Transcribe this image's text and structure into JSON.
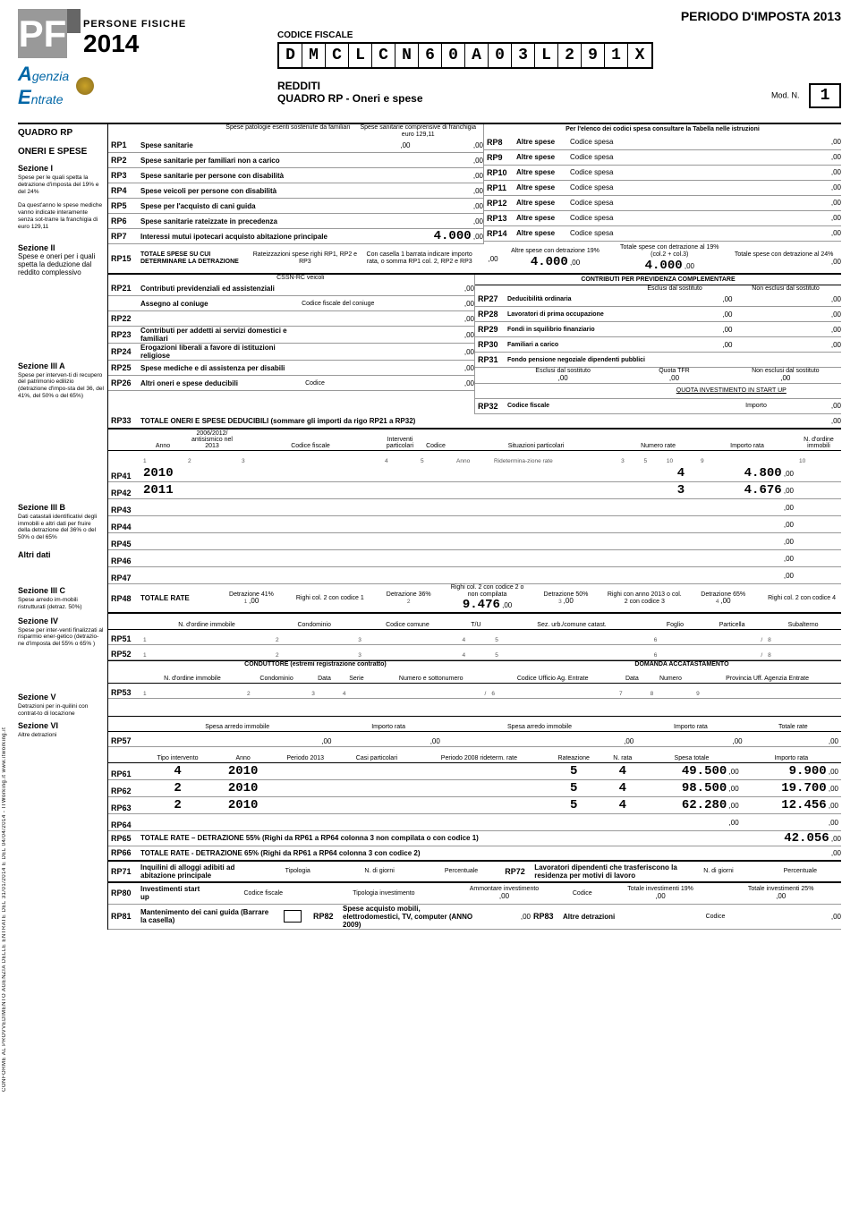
{
  "periodo": "PERIODO D'IMPOSTA 2013",
  "codice_fiscale_label": "CODICE FISCALE",
  "codice_fiscale": [
    "D",
    "M",
    "C",
    "L",
    "C",
    "N",
    "6",
    "0",
    "A",
    "0",
    "3",
    "L",
    "2",
    "9",
    "1",
    "X"
  ],
  "redditi": "REDDITI",
  "quadro_title": "QUADRO RP - Oneri e spese",
  "mod_n_label": "Mod. N.",
  "mod_n": "1",
  "logo": {
    "persone_fisiche": "PERSONE FISICHE",
    "anno": "2014",
    "agenzia": "genzia",
    "entrate": "ntrate"
  },
  "side": {
    "quadro": "QUADRO RP",
    "oneri": "ONERI E SPESE",
    "sez1": "Sezione I",
    "sez1_note1": "Spese per le quali spetta la detrazione d'imposta del 19% e del 24%",
    "sez1_note2": "Da quest'anno le spese mediche vanno indicate interamente senza sot-trarre la franchigia di euro 129,11",
    "sez2": "Sezione II",
    "sez2_sub": "Spese e oneri per i quali spetta la deduzione dal reddito complessivo",
    "sez3a": "Sezione III A",
    "sez3a_sub": "Spese per interven-ti di recupero del patrimonio edilizio (detrazione d'impo-sta del 36, del 41%, del 50% o del 65%)",
    "sez3b": "Sezione III B",
    "sez3b_sub": "Dati catastali identificativi degli immobili e altri dati per fruire della detrazione del 36% o del 50% o del 65%",
    "altri_dati": "Altri dati",
    "sez3c": "Sezione III C",
    "sez3c_sub": "Spese arredo im-mobili ristrutturati (detraz. 50%)",
    "sez4": "Sezione IV",
    "sez4_sub": "Spese per inter-venti finalizzati al risparmio ener-getico (detrazio-ne d'imposta del 55% o 65% )",
    "sez5": "Sezione V",
    "sez5_sub": "Detrazioni per in-quilini con contrat-to di locazione",
    "sez6": "Sezione VI",
    "sez6_sub": "Altre detrazioni"
  },
  "hdrs": {
    "rp1_h1": "Spese patologie esenti sostenute da familiari",
    "rp1_h2": "Spese sanitarie comprensive di franchigia euro 129,11",
    "rp_right": "Per l'elenco dei codici spesa consultare la Tabella nelle istruzioni",
    "codice_spesa": "Codice spesa",
    "altre_spese": "Altre spese",
    "rp15_r": "Rateizzazioni spese righi RP1, RP2 e RP3",
    "rp15_c": "Con casella 1 barrata indicare importo rata, o somma RP1 col. 2, RP2 e RP3",
    "rp15_3": "Altre spese con detrazione 19%",
    "rp15_4": "Totale spese con detrazione al 19% (col.2 + col.3)",
    "rp15_5": "Totale spese con detrazione al 24%",
    "cssn": "CSSN-RC veicoli",
    "contrib_prev": "CONTRIBUTI PER PREVIDENZA COMPLEMENTARE",
    "escluso": "Esclusi dal sostituto",
    "nonescl": "Non esclusi dal sostituto",
    "cf_coniuge": "Codice fiscale del coniuge",
    "quota_tfr": "Quota TFR",
    "quota_startup": "QUOTA INVESTIMENTO IN START UP",
    "importo": "Importo",
    "anno": "Anno",
    "antis": "2006/2012/ antisismico nel 2013",
    "cf": "Codice fiscale",
    "interv_part": "Interventi particolari",
    "codice": "Codice",
    "sit_part": "Situazioni particolari",
    "ridet": "Ridetermina-zione rate",
    "num_rate": "Numero rate",
    "importo_rata": "Importo rata",
    "nord": "N. d'ordine immobili",
    "totale_rate": "TOTALE RATE",
    "d41": "Detrazione 41%",
    "r2c1": "Righi col. 2 con codice 1",
    "d36": "Detrazione 36%",
    "r2c2": "Righi col. 2 con codice 2 o non compilata",
    "d50": "Detrazione 50%",
    "r2013": "Righi con anno 2013 o col. 2 con codice 3",
    "d65": "Detrazione 65%",
    "r2c4": "Righi col. 2 con codice 4",
    "nordimm": "N. d'ordine immobile",
    "condo": "Condominio",
    "ccom": "Codice comune",
    "tu": "T/U",
    "sezurb": "Sez. urb./comune catast.",
    "foglio": "Foglio",
    "particella": "Particella",
    "subalt": "Subalterno",
    "conduttore": "CONDUTTORE (estremi registrazione contratto)",
    "domacc": "DOMANDA ACCATASTAMENTO",
    "data": "Data",
    "serie": "Serie",
    "numsott": "Numero e sottonumero",
    "cue": "Codice Ufficio Ag. Entrate",
    "numero": "Numero",
    "prov": "Provincia Uff. Agenzia Entrate",
    "spesa_arredo": "Spesa arredo immobile",
    "tot_rate": "Totale rate",
    "tipo_int": "Tipo intervento",
    "periodo": "Periodo 2013",
    "casi": "Casi particolari",
    "p2008": "Periodo 2008 rideterm. rate",
    "rateaz": "Rateazione",
    "nrata": "N. rata",
    "spesatot": "Spesa totale",
    "rp65": "TOTALE RATE – DETRAZIONE   55%  (Righi da RP61 a RP64 colonna 3 non compilata o con codice 1)",
    "rp66": "TOTALE RATE - DETRAZIONE   65%  (Righi da RP61 a RP64 colonna 3 con codice 2)",
    "inquilini": "Inquilini di alloggi adibiti ad abitazione principale",
    "tipologia": "Tipologia",
    "ngiorni": "N. di giorni",
    "perc": "Percentuale",
    "lavdip": "Lavoratori dipendenti che trasferiscono la residenza per motivi di lavoro",
    "invest": "Investimenti start up",
    "tipinv": "Tipologia investimento",
    "amminv": "Ammontare investimento",
    "tot19": "Totale investimenti 19%",
    "tot25": "Totale investimenti 25%",
    "rp81": "Mantenimento dei cani guida (Barrare la casella)",
    "rp82": "Spese acquisto mobili, elettrodomestici, TV, computer (ANNO 2009)",
    "rp83": "Altre detrazioni"
  },
  "rows1": [
    {
      "code": "RP1",
      "label": "Spese sanitarie"
    },
    {
      "code": "RP2",
      "label": "Spese sanitarie per familiari non a carico"
    },
    {
      "code": "RP3",
      "label": "Spese sanitarie per persone con disabilità"
    },
    {
      "code": "RP4",
      "label": "Spese veicoli per persone con disabilità"
    },
    {
      "code": "RP5",
      "label": "Spese per l'acquisto di cani guida"
    },
    {
      "code": "RP6",
      "label": "Spese sanitarie rateizzate in precedenza"
    },
    {
      "code": "RP7",
      "label": "Interessi mutui ipotecari acquisto abitazione principale",
      "val": "4.000"
    }
  ],
  "rows1r": [
    {
      "code": "RP8"
    },
    {
      "code": "RP9"
    },
    {
      "code": "RP10"
    },
    {
      "code": "RP11"
    },
    {
      "code": "RP12"
    },
    {
      "code": "RP13"
    },
    {
      "code": "RP14"
    }
  ],
  "rp15": {
    "code": "RP15",
    "label": "TOTALE SPESE SU CUI DETERMINARE LA DETRAZIONE",
    "v3": "4.000",
    "v4": "4.000"
  },
  "rows2l": [
    {
      "code": "RP21",
      "label": "Contributi previdenziali ed assistenziali"
    },
    {
      "code": "",
      "label": "Assegno al coniuge"
    },
    {
      "code": "RP22",
      "label": ""
    },
    {
      "code": "RP23",
      "label": "Contributi per addetti ai servizi domestici e familiari"
    },
    {
      "code": "RP24",
      "label": "Erogazioni liberali a favore di istituzioni religiose"
    },
    {
      "code": "RP25",
      "label": "Spese mediche e di assistenza per disabili"
    },
    {
      "code": "RP26",
      "label": "Altri oneri e spese deducibili"
    }
  ],
  "rows2r": [
    {
      "code": "RP27",
      "label": "Deducibilità ordinaria"
    },
    {
      "code": "RP28",
      "label": "Lavoratori di prima occupazione"
    },
    {
      "code": "RP29",
      "label": "Fondi in squilibrio finanziario"
    },
    {
      "code": "RP30",
      "label": "Familiari a carico"
    },
    {
      "code": "RP31",
      "label": "Fondo pensione negoziale dipendenti pubblici"
    },
    {
      "code": "RP32",
      "label": "Codice fiscale"
    }
  ],
  "rp33": {
    "code": "RP33",
    "label": "TOTALE ONERI E SPESE DEDUCIBILI (sommare gli importi da rigo RP21 a RP32)"
  },
  "rp4x": [
    {
      "code": "RP41",
      "anno": "2010",
      "rate": "4",
      "importo": "4.800"
    },
    {
      "code": "RP42",
      "anno": "2011",
      "rate": "3",
      "importo": "4.676"
    },
    {
      "code": "RP43"
    },
    {
      "code": "RP44"
    },
    {
      "code": "RP45"
    },
    {
      "code": "RP46"
    },
    {
      "code": "RP47"
    }
  ],
  "rp48": {
    "code": "RP48",
    "val2": "9.476"
  },
  "rp5x": [
    {
      "code": "RP51"
    },
    {
      "code": "RP52"
    }
  ],
  "rp53": {
    "code": "RP53"
  },
  "rp57": {
    "code": "RP57"
  },
  "rp6x": [
    {
      "code": "RP61",
      "tipo": "4",
      "anno": "2010",
      "rate": "5",
      "nrata": "4",
      "spesa": "49.500",
      "importo": "9.900"
    },
    {
      "code": "RP62",
      "tipo": "2",
      "anno": "2010",
      "rate": "5",
      "nrata": "4",
      "spesa": "98.500",
      "importo": "19.700"
    },
    {
      "code": "RP63",
      "tipo": "2",
      "anno": "2010",
      "rate": "5",
      "nrata": "4",
      "spesa": "62.280",
      "importo": "12.456"
    },
    {
      "code": "RP64"
    }
  ],
  "rp65": {
    "code": "RP65",
    "val": "42.056"
  },
  "rp66": {
    "code": "RP66"
  },
  "rp71": {
    "code": "RP71"
  },
  "rp72": {
    "code": "RP72"
  },
  "rp80": {
    "code": "RP80"
  },
  "rp81": {
    "code": "RP81"
  },
  "rp82": {
    "code": "RP82"
  },
  "rp83": {
    "code": "RP83"
  },
  "sidefoot": "CONFORME AL PROVVEDIMENTO AGENZIA DELLE ENTRATE DEL 31/01/2014 E DEL 04/04/2014 - ITWorking.it    www.itworking.it"
}
